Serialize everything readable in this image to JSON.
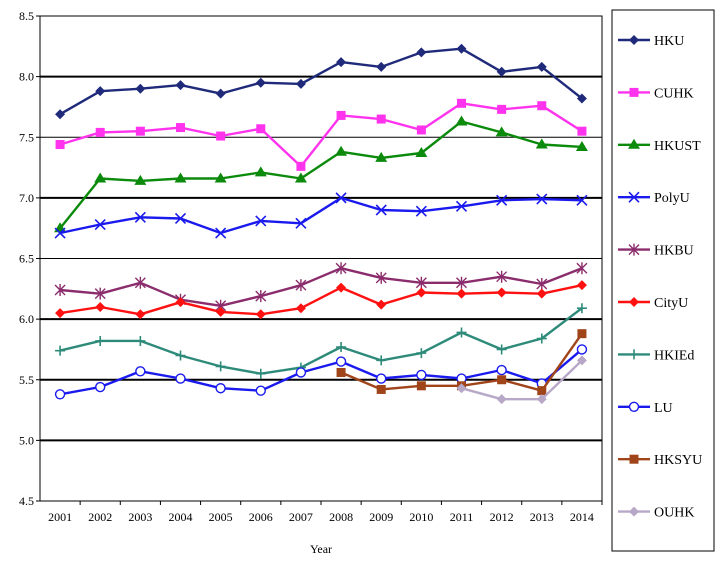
{
  "chart_data": {
    "type": "line",
    "xlabel": "Year",
    "ylabel": "",
    "ylim": [
      4.5,
      8.5
    ],
    "yticks": [
      "4.5",
      "5.0",
      "5.5",
      "6.0",
      "6.5",
      "7.0",
      "7.5",
      "8.0",
      "8.5"
    ],
    "categories": [
      "2001",
      "2002",
      "2003",
      "2004",
      "2005",
      "2006",
      "2007",
      "2008",
      "2009",
      "2010",
      "2011",
      "2012",
      "2013",
      "2014"
    ],
    "grid": "horizontal",
    "legend_position": "right",
    "series": [
      {
        "name": "HKU",
        "color": "#1f2a7a",
        "marker": "diamond",
        "values": [
          7.69,
          7.88,
          7.9,
          7.93,
          7.86,
          7.95,
          7.94,
          8.12,
          8.08,
          8.2,
          8.23,
          8.04,
          8.08,
          7.82
        ]
      },
      {
        "name": "CUHK",
        "color": "#ff33ee",
        "marker": "square",
        "values": [
          7.44,
          7.54,
          7.55,
          7.58,
          7.51,
          7.57,
          7.26,
          7.68,
          7.65,
          7.56,
          7.78,
          7.73,
          7.76,
          7.55
        ]
      },
      {
        "name": "HKUST",
        "color": "#0b8a0b",
        "marker": "triangle",
        "values": [
          6.75,
          7.16,
          7.14,
          7.16,
          7.16,
          7.21,
          7.16,
          7.38,
          7.33,
          7.37,
          7.63,
          7.54,
          7.44,
          7.42
        ]
      },
      {
        "name": "PolyU",
        "color": "#1a1aee",
        "marker": "x",
        "values": [
          6.71,
          6.78,
          6.84,
          6.83,
          6.71,
          6.81,
          6.79,
          7.0,
          6.9,
          6.89,
          6.93,
          6.98,
          6.99,
          6.98
        ]
      },
      {
        "name": "HKBU",
        "color": "#8b2c6c",
        "marker": "star",
        "values": [
          6.24,
          6.21,
          6.3,
          6.16,
          6.11,
          6.19,
          6.28,
          6.42,
          6.34,
          6.3,
          6.3,
          6.35,
          6.29,
          6.42
        ]
      },
      {
        "name": "CityU",
        "color": "#ff1111",
        "marker": "diamond",
        "values": [
          6.05,
          6.1,
          6.04,
          6.14,
          6.06,
          6.04,
          6.09,
          6.26,
          6.12,
          6.22,
          6.21,
          6.22,
          6.21,
          6.28
        ]
      },
      {
        "name": "HKIEd",
        "color": "#2e8b7a",
        "marker": "plus",
        "values": [
          5.74,
          5.82,
          5.82,
          5.7,
          5.61,
          5.55,
          5.6,
          5.77,
          5.66,
          5.72,
          5.89,
          5.75,
          5.84,
          6.09
        ]
      },
      {
        "name": "LU",
        "color": "#1a1aee",
        "marker": "circle",
        "values": [
          5.38,
          5.44,
          5.57,
          5.51,
          5.43,
          5.41,
          5.56,
          5.65,
          5.51,
          5.54,
          5.51,
          5.58,
          5.47,
          5.75
        ]
      },
      {
        "name": "HKSYU",
        "color": "#a0441a",
        "marker": "square",
        "values": [
          null,
          null,
          null,
          null,
          null,
          null,
          null,
          5.56,
          5.42,
          5.45,
          5.45,
          5.5,
          5.41,
          5.88
        ]
      },
      {
        "name": "OUHK",
        "color": "#b8a8c8",
        "marker": "diamond",
        "values": [
          null,
          null,
          null,
          null,
          null,
          null,
          null,
          null,
          null,
          null,
          5.43,
          5.34,
          5.34,
          5.66
        ]
      }
    ]
  }
}
